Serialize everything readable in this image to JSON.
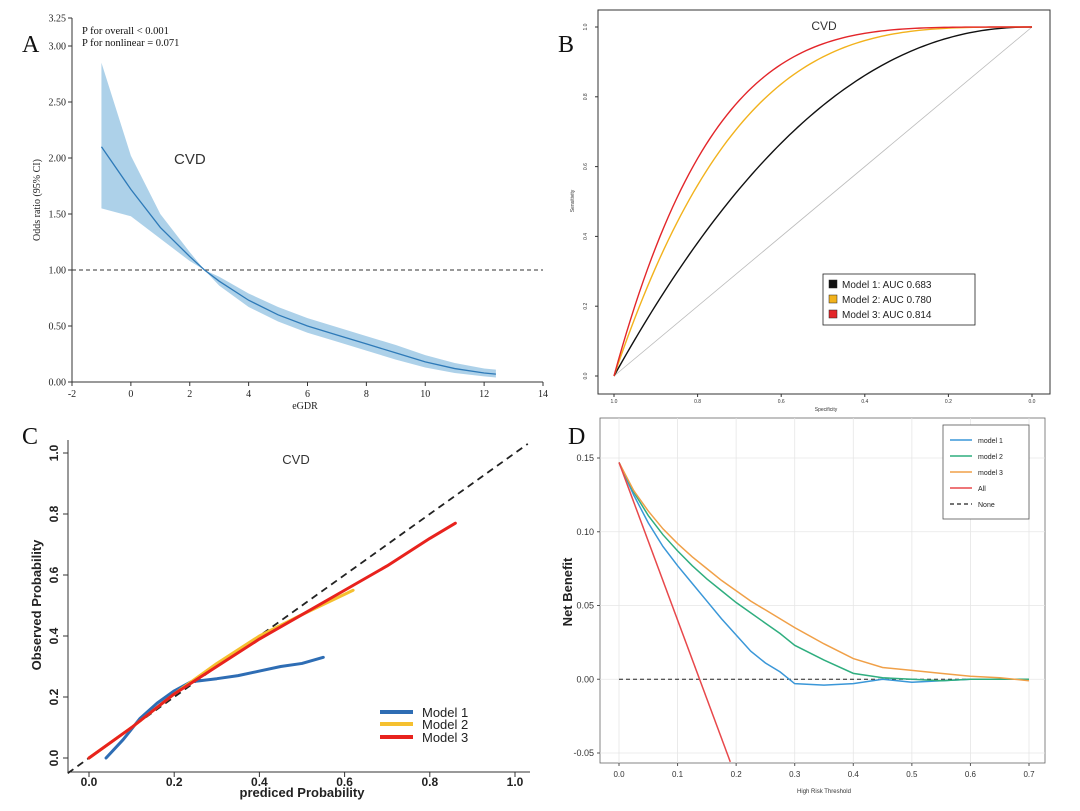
{
  "panels": {
    "a": {
      "letter": "A"
    },
    "b": {
      "letter": "B"
    },
    "c": {
      "letter": "C"
    },
    "d": {
      "letter": "D"
    }
  },
  "chart_data": [
    {
      "id": "A",
      "type": "line",
      "title": "CVD",
      "annotations": [
        "P for overall < 0.001",
        "P for nonlinear = 0.071"
      ],
      "xlabel": "eGDR",
      "ylabel": "Odds ratio (95% CI)",
      "xlim": [
        -2,
        14
      ],
      "ylim": [
        0,
        3.25
      ],
      "xticks": [
        -2,
        0,
        2,
        4,
        6,
        8,
        10,
        12,
        14
      ],
      "yticks": [
        0.0,
        0.5,
        1.0,
        1.5,
        2.0,
        2.5,
        3.0,
        3.25
      ],
      "yticklabels": [
        "0.00",
        "0.50",
        "1.00",
        "1.50",
        "2.00",
        "2.50",
        "3.00",
        "3.25"
      ],
      "reference_line": 1.0,
      "series": [
        {
          "x": [
            -1,
            0,
            1,
            2,
            2.5,
            3,
            4,
            5,
            6,
            7,
            8,
            9,
            10,
            11,
            12,
            12.4
          ],
          "y": [
            2.1,
            1.72,
            1.38,
            1.12,
            1.0,
            0.9,
            0.73,
            0.6,
            0.5,
            0.42,
            0.34,
            0.26,
            0.18,
            0.12,
            0.08,
            0.07
          ],
          "lower": [
            1.55,
            1.48,
            1.28,
            1.08,
            1.0,
            0.86,
            0.67,
            0.54,
            0.44,
            0.36,
            0.28,
            0.2,
            0.13,
            0.08,
            0.05,
            0.04
          ],
          "upper": [
            2.85,
            2.02,
            1.5,
            1.16,
            1.0,
            0.94,
            0.79,
            0.67,
            0.57,
            0.49,
            0.41,
            0.33,
            0.24,
            0.17,
            0.12,
            0.11
          ]
        }
      ],
      "colors": {
        "line": "#2e7ab8",
        "band": "#a9cfe8"
      }
    },
    {
      "id": "B",
      "type": "line",
      "title": "CVD",
      "xlabel": "Specificity",
      "ylabel": "Sensitivity",
      "xlim": [
        1.0,
        0.0
      ],
      "ylim": [
        0.0,
        1.0
      ],
      "xticks": [
        1.0,
        0.8,
        0.6,
        0.4,
        0.2,
        0.0
      ],
      "xticklabels": [
        "1.0",
        "0.8",
        "0.6",
        "0.4",
        "0.2",
        "0.0"
      ],
      "yticks": [
        0.0,
        0.2,
        0.4,
        0.6,
        0.8,
        1.0
      ],
      "yticklabels": [
        "0.0",
        "0.2",
        "0.4",
        "0.6",
        "0.8",
        "1.0"
      ],
      "legend_position": "bottom-right",
      "series": [
        {
          "name": "Model 1: AUC 0.683",
          "auc": 0.683,
          "color": "#111111"
        },
        {
          "name": "Model 2: AUC 0.780",
          "auc": 0.78,
          "color": "#f2b21c"
        },
        {
          "name": "Model 3: AUC 0.814",
          "auc": 0.814,
          "color": "#e3262a"
        }
      ]
    },
    {
      "id": "C",
      "type": "line",
      "title": "CVD",
      "xlabel": "prediced Probability",
      "ylabel": "Observed Probability",
      "xlim": [
        0.0,
        1.0
      ],
      "ylim": [
        0.0,
        1.0
      ],
      "xticks": [
        0.0,
        0.2,
        0.4,
        0.6,
        0.8,
        1.0
      ],
      "xticklabels": [
        "0.0",
        "0.2",
        "0.4",
        "0.6",
        "0.8",
        "1.0"
      ],
      "yticks": [
        0.0,
        0.2,
        0.4,
        0.6,
        0.8,
        1.0
      ],
      "yticklabels": [
        "0.0",
        "0.2",
        "0.4",
        "0.6",
        "0.8",
        "1.0"
      ],
      "legend_position": "bottom-right",
      "series": [
        {
          "name": "Model 1",
          "color": "#2e6db4",
          "x": [
            0.04,
            0.08,
            0.12,
            0.16,
            0.2,
            0.24,
            0.3,
            0.35,
            0.4,
            0.45,
            0.5,
            0.55
          ],
          "y": [
            0.0,
            0.06,
            0.13,
            0.18,
            0.22,
            0.25,
            0.26,
            0.27,
            0.285,
            0.3,
            0.31,
            0.33
          ]
        },
        {
          "name": "Model 2",
          "color": "#f5c02f",
          "x": [
            0.0,
            0.1,
            0.2,
            0.3,
            0.4,
            0.5,
            0.62
          ],
          "y": [
            0.0,
            0.1,
            0.21,
            0.31,
            0.4,
            0.47,
            0.55
          ]
        },
        {
          "name": "Model 3",
          "color": "#e8221d",
          "x": [
            0.0,
            0.1,
            0.2,
            0.3,
            0.4,
            0.5,
            0.6,
            0.7,
            0.8,
            0.86
          ],
          "y": [
            0.0,
            0.1,
            0.21,
            0.3,
            0.39,
            0.47,
            0.55,
            0.63,
            0.72,
            0.77
          ]
        }
      ]
    },
    {
      "id": "D",
      "type": "line",
      "xlabel": "High Risk Threshold",
      "ylabel": "Net Benefit",
      "xlim": [
        0.0,
        0.7
      ],
      "ylim": [
        -0.05,
        0.15
      ],
      "xticks": [
        0.0,
        0.1,
        0.2,
        0.3,
        0.4,
        0.5,
        0.6,
        0.7
      ],
      "xticklabels": [
        "0.0",
        "0.1",
        "0.2",
        "0.3",
        "0.4",
        "0.5",
        "0.6",
        "0.7"
      ],
      "yticks": [
        -0.05,
        0.0,
        0.05,
        0.1,
        0.15
      ],
      "yticklabels": [
        "-0.05",
        "0.00",
        "0.05",
        "0.10",
        "0.15"
      ],
      "legend_position": "top-right",
      "series": [
        {
          "name": "model 1",
          "color": "#3a97d8",
          "x": [
            0.0,
            0.025,
            0.05,
            0.075,
            0.1,
            0.125,
            0.15,
            0.175,
            0.2,
            0.225,
            0.25,
            0.275,
            0.3,
            0.35,
            0.4,
            0.45,
            0.5,
            0.55,
            0.6,
            0.65,
            0.7
          ],
          "y": [
            0.147,
            0.125,
            0.106,
            0.09,
            0.077,
            0.065,
            0.053,
            0.041,
            0.03,
            0.019,
            0.011,
            0.005,
            -0.003,
            -0.004,
            -0.003,
            0.0,
            -0.002,
            -0.001,
            0.0,
            0.0,
            0.0
          ]
        },
        {
          "name": "model 2",
          "color": "#2fae7f",
          "x": [
            0.0,
            0.025,
            0.05,
            0.075,
            0.1,
            0.125,
            0.15,
            0.175,
            0.2,
            0.225,
            0.25,
            0.275,
            0.3,
            0.35,
            0.4,
            0.45,
            0.5,
            0.55,
            0.6,
            0.65,
            0.7
          ],
          "y": [
            0.147,
            0.127,
            0.111,
            0.098,
            0.087,
            0.077,
            0.068,
            0.06,
            0.052,
            0.045,
            0.038,
            0.031,
            0.023,
            0.013,
            0.004,
            0.001,
            0.0,
            -0.001,
            0.0,
            0.0,
            0.0
          ]
        },
        {
          "name": "model 3",
          "color": "#f0a048",
          "x": [
            0.0,
            0.025,
            0.05,
            0.075,
            0.1,
            0.125,
            0.15,
            0.175,
            0.2,
            0.225,
            0.25,
            0.275,
            0.3,
            0.35,
            0.4,
            0.45,
            0.5,
            0.55,
            0.6,
            0.65,
            0.7
          ],
          "y": [
            0.147,
            0.128,
            0.114,
            0.102,
            0.092,
            0.083,
            0.075,
            0.067,
            0.06,
            0.053,
            0.047,
            0.041,
            0.035,
            0.024,
            0.014,
            0.008,
            0.006,
            0.004,
            0.002,
            0.001,
            -0.001
          ]
        },
        {
          "name": "All",
          "color": "#e8484b",
          "x": [
            0.0,
            0.19
          ],
          "y": [
            0.147,
            -0.056
          ]
        },
        {
          "name": "None",
          "color": "#222222",
          "dashed": true,
          "x": [
            0.0,
            0.7
          ],
          "y": [
            0.0,
            0.0
          ]
        }
      ]
    }
  ]
}
